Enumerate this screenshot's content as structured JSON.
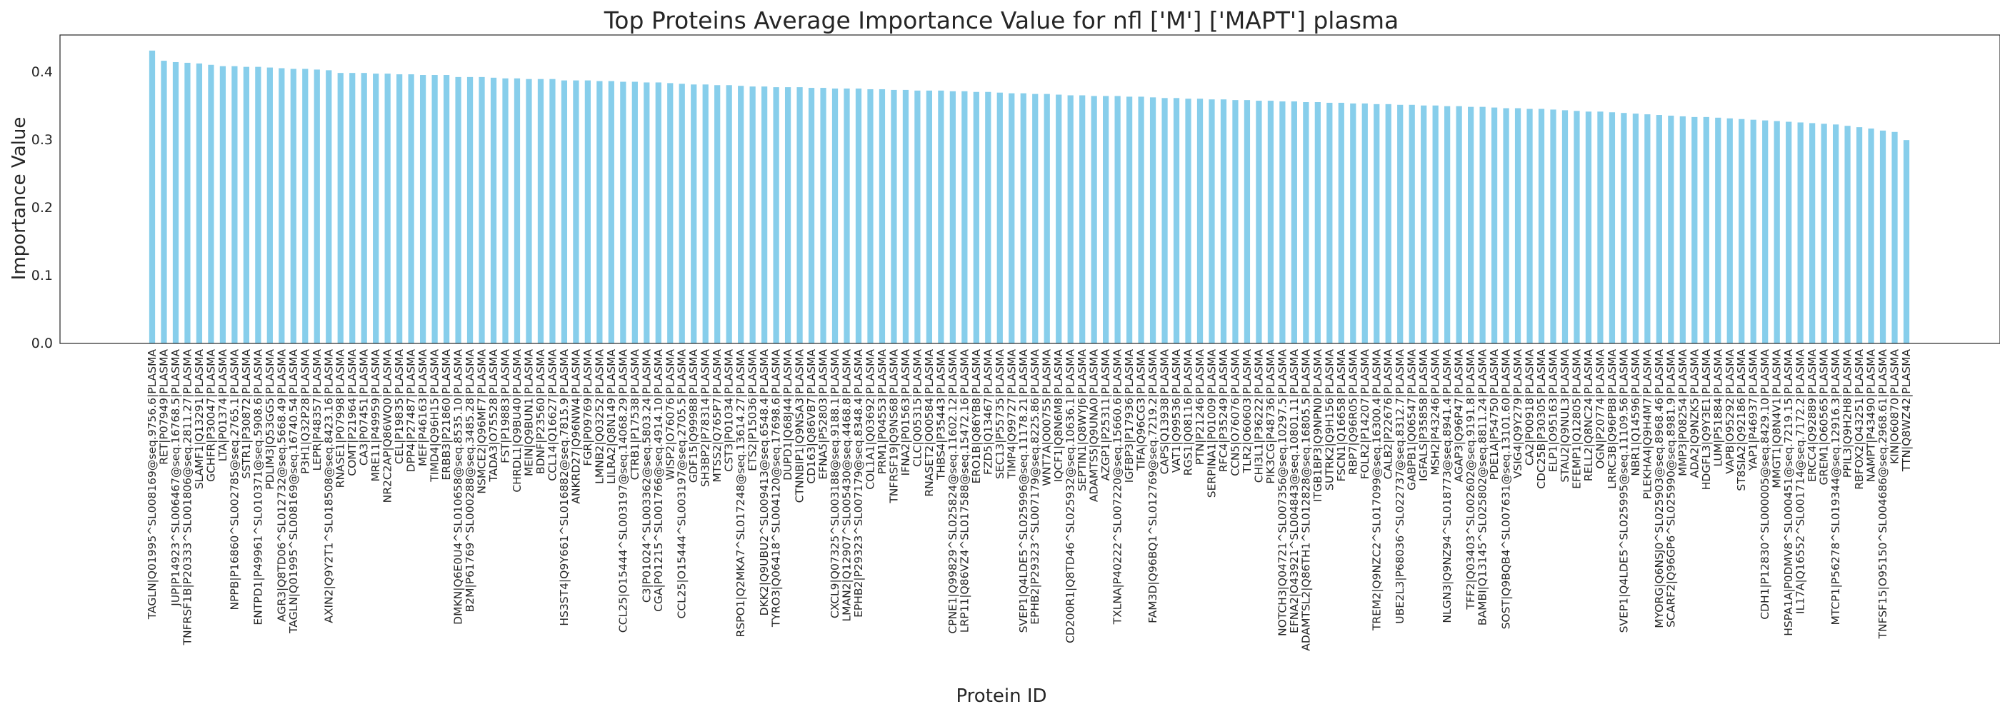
{
  "chart_data": {
    "type": "bar",
    "title": "Top Proteins Average Importance Value for nfl ['M'] ['MAPT'] plasma",
    "xlabel": "Protein ID",
    "ylabel": "Importance Value",
    "ylim": [
      0,
      0.455
    ],
    "yticks": [
      "0.0",
      "0.1",
      "0.2",
      "0.3",
      "0.4"
    ],
    "ytick_values": [
      0,
      0.1,
      0.2,
      0.3,
      0.4
    ],
    "bar_color": "#87ceeb",
    "grid": false,
    "categories": [
      "TAGLN|Q01995^SL008169@seq.9756.6|PLASMA",
      "RET|P07949|PLASMA",
      "JUP|P14923^SL006467@seq.16768.5|PLASMA",
      "TNFRSF1B|P20333^SL001806@seq.2811.27|PLASMA",
      "SLAMF1|Q13291|PLASMA",
      "GCHFR|P30047|PLASMA",
      "LTA|P01374|PLASMA",
      "NPPB|P16860^SL002785@seq.2765.1|PLASMA",
      "SSTR1|P30872|PLASMA",
      "ENTPD1|P49961^SL010371@seq.5908.6|PLASMA",
      "PDLIM3|Q53GG5|PLASMA",
      "AGR3|Q8TD06^SL012732@seq.5668.49|PLASMA",
      "TAGLN|Q01995^SL008169@seq.16740.54|PLASMA",
      "P3H1|Q32P28|PLASMA",
      "LEPR|P48357|PLASMA",
      "AXIN2|Q9Y2T1^SL018508@seq.8423.16|PLASMA",
      "RNASE1|P07998|PLASMA",
      "COMT|P21964|PLASMA",
      "CA3|P07451|PLASMA",
      "MRE11|P49959|PLASMA",
      "NR2C2AP|Q86WQ0|PLASMA",
      "CEL|P19835|PLASMA",
      "DPP4|P27487|PLASMA",
      "MEF|P46163|PLASMA",
      "TIMD4|Q96H15|PLASMA",
      "ERBB3|P21860|PLASMA",
      "DMKN|Q6E0U4^SL010658@seq.8535.10|PLASMA",
      "B2M|P61769^SL000288@seq.3485.28|PLASMA",
      "NSMCE2|Q96MF7|PLASMA",
      "TADA3|O75528|PLASMA",
      "FST|P19883|PLASMA",
      "CHRDL1|Q9BU40|PLASMA",
      "MEIN|Q9BUN1|PLASMA",
      "BDNF|P23560|PLASMA",
      "CCL14|Q16627|PLASMA",
      "HS3ST4|Q9Y661^SL016882@seq.7815.9|PLASMA",
      "ANKRD27|Q96NW4|PLASMA",
      "FGR|P09769|PLASMA",
      "LMNB2|Q03252|PLASMA",
      "LILRA2|Q8N149|PLASMA",
      "CCL25|O15444^SL003197@seq.14068.29|PLASMA",
      "CTRB1|P17538|PLASMA",
      "C3|P01024^SL003362@seq.5803.24|PLASMA",
      "CGA|P01215^SL001766@seq.4914.10|PLASMA",
      "WISP2|O76076|PLASMA",
      "CCL25|O15444^SL003197@seq.2705.5|PLASMA",
      "GDF15|Q99988|PLASMA",
      "SH3BP2|P78314|PLASMA",
      "MTSS2|Q765P7|PLASMA",
      "CST3|P01034|PLASMA",
      "RSPO1|Q2MKA7^SL017248@seq.13614.27|PLASMA",
      "ETS2|P15036|PLASMA",
      "DKK2|Q9UBU2^SL009413@seq.6548.4|PLASMA",
      "TYRO3|Q06418^SL004120@seq.17698.6|PLASMA",
      "DUPD1|Q68J44|PLASMA",
      "CTNNBIP1|Q9NSA3|PLASMA",
      "CD163|Q86VB7|PLASMA",
      "EFNA5|P52803|PLASMA",
      "CXCL9|Q07325^SL003188@seq.9188.1|PLASMA",
      "LMAN2|Q12907^SL005430@seq.4468.8|PLASMA",
      "EPHB2|P29323^SL007179@seq.8348.4|PLASMA",
      "COL1A1|Q03692|PLASMA",
      "PRM1|P04553|PLASMA",
      "TNFRSF19|Q9NS68|PLASMA",
      "IFNA2|P01563|PLASMA",
      "CLC|Q05315|PLASMA",
      "RNASET2|O00584|PLASMA",
      "THBS4|P35443|PLASMA",
      "CPNE1|Q99829^SL025824@seq.11602.12|PLASMA",
      "LRP11|Q86VZ4^SL017588@seq.15472.16|PLASMA",
      "ERO1B|Q86YB8|PLASMA",
      "FZD5|Q13467|PLASMA",
      "SEC13|P55735|PLASMA",
      "TIMP4|Q99727|PLASMA",
      "SVEP1|Q4LDE5^SL025996@seq.11178.21|PLASMA",
      "EPHB2|P29323^SL007179@seq.8225.86|PLASMA",
      "WNT7A|O00755|PLASMA",
      "IQCF1|Q8N6M8|PLASMA",
      "CD200R1|Q8TD46^SL025932@seq.10636.1|PLASMA",
      "SEPTIN1|Q8WYJ6|PLASMA",
      "ADAMTS5|Q9UNA0|PLASMA",
      "AZGP1|P25311|PLASMA",
      "TXLNA|P40222^SL007220@seq.15660.6|PLASMA",
      "IGFBP3|P17936|PLASMA",
      "TIFA|Q96CG3|PLASMA",
      "FAM3D|Q96BQ1^SL012769@seq.7219.2|PLASMA",
      "CAPS|Q13938|PLASMA",
      "VAT1|Q99536|PLASMA",
      "RGS1|Q08116|PLASMA",
      "PTN|P21246|PLASMA",
      "SERPINA1|P01009|PLASMA",
      "RFC4|P35249|PLASMA",
      "CCN5|O76076|PLASMA",
      "TLR2|O60603|PLASMA",
      "CHI3L1|P36222|PLASMA",
      "PIK3CG|P48736|PLASMA",
      "NOTCH3|Q04721^SL007356@seq.10297.5|PLASMA",
      "EFNA2|O43921^SL004843@seq.10801.11|PLASMA",
      "ADAMTSL2|Q86TH1^SL012828@seq.16805.5|PLASMA",
      "ITGB1BP3|Q9NPN0|PLASMA",
      "SUTRK2|Q9H156|PLASMA",
      "FSCN1|Q16658|PLASMA",
      "RBP7|Q96R05|PLASMA",
      "FOLR2|P14207|PLASMA",
      "TREM2|Q9NZC2^SL017099@seq.16300.4|PLASMA",
      "CALB2|P22676|PLASMA",
      "UBE2L3|P68036^SL022737@seq.8312.7|PLASMA",
      "GABPB1|Q06547|PLASMA",
      "IGFALS|P35858|PLASMA",
      "MSH2|P43246|PLASMA",
      "NLGN3|Q9NZ94^SL018773@seq.8941.4|PLASMA",
      "AGAP3|Q96P47|PLASMA",
      "TFF2|Q03403^SL002602@seq.9191.8|PLASMA",
      "BAMBI|Q13145^SL025802@seq.8811.24|PLASMA",
      "PDE1A|P54750|PLASMA",
      "SOST|Q9BQB4^SL007631@seq.13101.60|PLASMA",
      "VSIG4|Q9Y279|PLASMA",
      "CA2|P00918|PLASMA",
      "CDC25B|P30305|PLASMA",
      "ELP1|O95163|PLASMA",
      "STAU2|Q9NUL3|PLASMA",
      "EFEMP1|Q12805|PLASMA",
      "RELL2|Q8NC24|PLASMA",
      "OGN|P20774|PLASMA",
      "LRRC3B|Q96PB8|PLASMA",
      "SVEP1|Q4LDE5^SL025995@seq.11109.56|PLASMA",
      "NBR1|Q14596|PLASMA",
      "PLEKHA4|Q9H4M7|PLASMA",
      "MYORG|Q6NSJ0^SL025903@seq.8968.46|PLASMA",
      "SCARF2|Q96GP6^SL025990@seq.8981.9|PLASMA",
      "MMP3|P08254|PLASMA",
      "ADA2|Q9NZK5|PLASMA",
      "HDGFL3|Q9Y3E1|PLASMA",
      "LUM|P51884|PLASMA",
      "VAPB|O95292|PLASMA",
      "ST8SIA2|Q92186|PLASMA",
      "YAP1|P46937|PLASMA",
      "CDH1|P12830^SL000005@seq.8429.10|PLASMA",
      "MMGT1|Q8N4V1|PLASMA",
      "HSPA1A|P0DMV8^SL000451@seq.7219.15|PLASMA",
      "IL17A|Q16552^SL001714@seq.7172.2|PLASMA",
      "ERCC4|Q92889|PLASMA",
      "GREM1|O60565|PLASMA",
      "MTCP1|P56278^SL019344@seq.12916.3|PLASMA",
      "PPIL3|Q9H2H8|PLASMA",
      "RBFOX2|O43251|PLASMA",
      "NAMPT|P43490|PLASMA",
      "TNFSF15|O95150^SL004686@seq.2968.61|PLASMA",
      "KIN|O60870|PLASMA",
      "TTN|Q8WZ42|PLASMA"
    ],
    "values": [
      0.432,
      0.417,
      0.415,
      0.414,
      0.413,
      0.411,
      0.409,
      0.409,
      0.408,
      0.408,
      0.407,
      0.406,
      0.405,
      0.405,
      0.404,
      0.403,
      0.399,
      0.399,
      0.399,
      0.398,
      0.398,
      0.397,
      0.397,
      0.396,
      0.396,
      0.396,
      0.393,
      0.393,
      0.393,
      0.392,
      0.391,
      0.391,
      0.39,
      0.39,
      0.39,
      0.388,
      0.388,
      0.388,
      0.387,
      0.387,
      0.386,
      0.386,
      0.385,
      0.385,
      0.384,
      0.383,
      0.382,
      0.382,
      0.381,
      0.381,
      0.38,
      0.379,
      0.379,
      0.378,
      0.378,
      0.378,
      0.377,
      0.377,
      0.376,
      0.376,
      0.376,
      0.375,
      0.375,
      0.374,
      0.374,
      0.373,
      0.373,
      0.373,
      0.372,
      0.372,
      0.371,
      0.371,
      0.37,
      0.369,
      0.369,
      0.368,
      0.368,
      0.367,
      0.366,
      0.366,
      0.365,
      0.365,
      0.365,
      0.364,
      0.364,
      0.363,
      0.362,
      0.362,
      0.361,
      0.361,
      0.36,
      0.36,
      0.359,
      0.359,
      0.358,
      0.358,
      0.357,
      0.357,
      0.356,
      0.356,
      0.355,
      0.355,
      0.354,
      0.354,
      0.353,
      0.353,
      0.352,
      0.352,
      0.351,
      0.351,
      0.35,
      0.35,
      0.349,
      0.349,
      0.348,
      0.347,
      0.347,
      0.346,
      0.346,
      0.345,
      0.344,
      0.343,
      0.342,
      0.342,
      0.341,
      0.34,
      0.339,
      0.338,
      0.337,
      0.336,
      0.335,
      0.334,
      0.334,
      0.333,
      0.332,
      0.331,
      0.33,
      0.329,
      0.328,
      0.327,
      0.326,
      0.325,
      0.324,
      0.323,
      0.321,
      0.319,
      0.317,
      0.314,
      0.312,
      0.3
    ]
  }
}
